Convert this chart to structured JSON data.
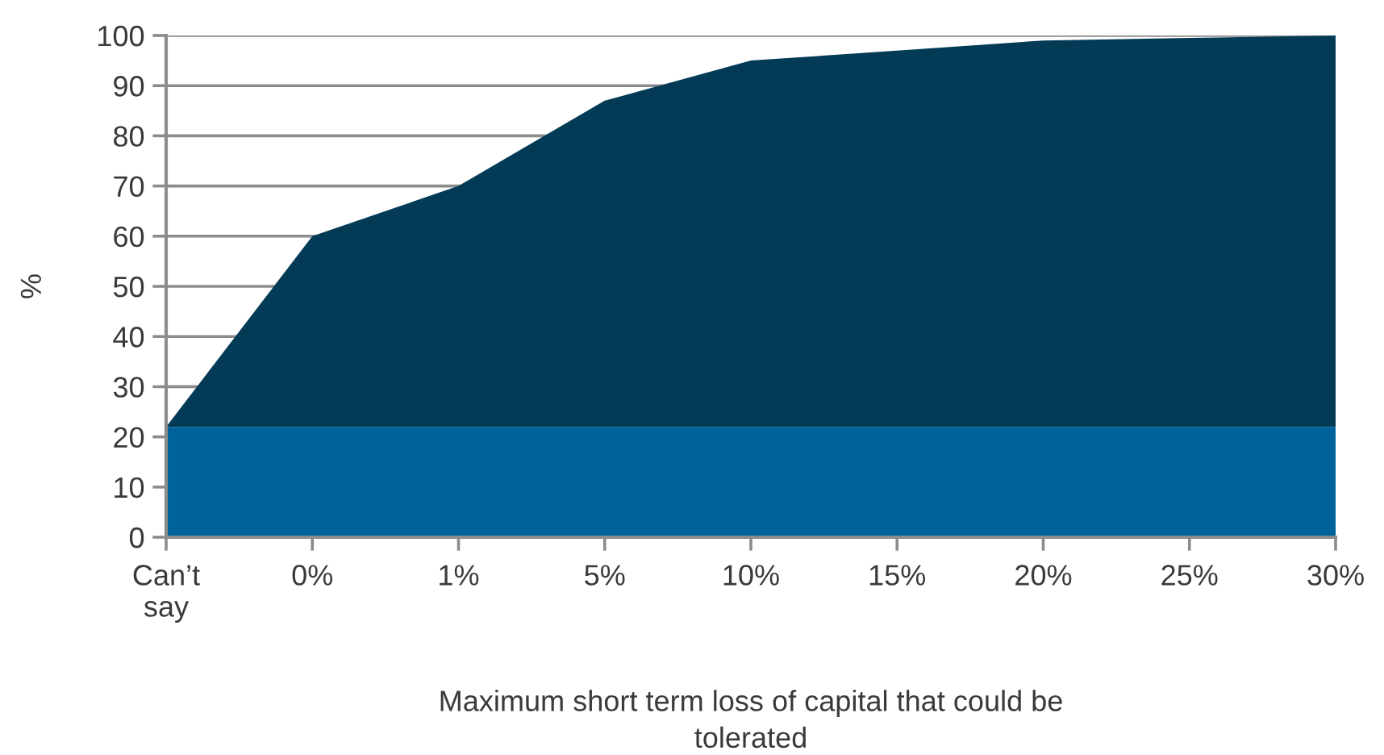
{
  "chart_data": {
    "type": "area",
    "stacked": true,
    "xlabel": "Maximum short term loss of capital that could be\ntolerated",
    "ylabel": "%",
    "categories": [
      "Can’t\nsay",
      "0%",
      "1%",
      "5%",
      "10%",
      "15%",
      "20%",
      "25%",
      "30%"
    ],
    "series": [
      {
        "color": "#00629a",
        "values": [
          22,
          22,
          22,
          22,
          22,
          22,
          22,
          22,
          22
        ]
      },
      {
        "color": "#033b57",
        "values": [
          0,
          38,
          48,
          65,
          73,
          75,
          77,
          77.5,
          78
        ]
      }
    ],
    "ylim": [
      0,
      100
    ],
    "yticks": [
      0,
      10,
      20,
      30,
      40,
      50,
      60,
      70,
      80,
      90,
      100
    ],
    "grid": "y"
  }
}
